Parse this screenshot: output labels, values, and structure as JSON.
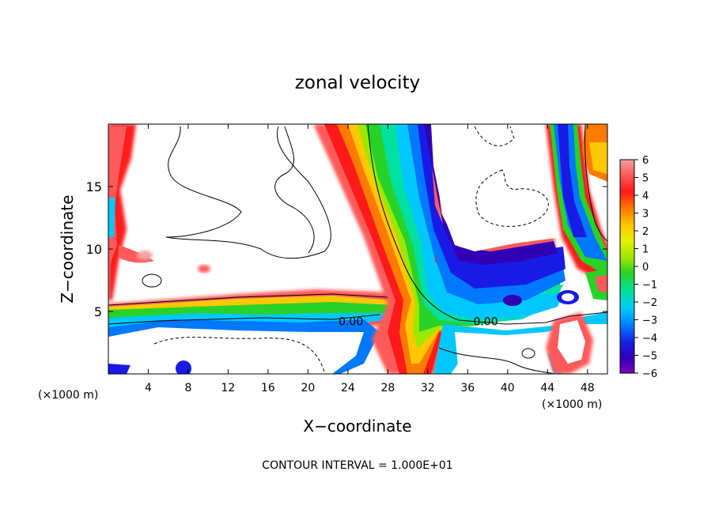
{
  "chart_data": {
    "type": "heatmap",
    "title": "zonal velocity",
    "xlabel": "X−coordinate",
    "ylabel": "Z−coordinate",
    "x_unit_left": "(×1000 m)",
    "x_unit_right": "(×1000 m)",
    "xlim": [
      0,
      50
    ],
    "ylim": [
      0,
      20
    ],
    "xticks": [
      4,
      8,
      12,
      16,
      20,
      24,
      28,
      32,
      36,
      40,
      44,
      48
    ],
    "yticks": [
      5,
      10,
      15
    ],
    "footer": "CONTOUR INTERVAL = 1.000E+01",
    "contour_labels": [
      {
        "text": "0.00",
        "x": 24.3,
        "z": 4.2
      },
      {
        "text": "0.00",
        "x": 37.8,
        "z": 4.2
      }
    ],
    "colorbar": {
      "min": -6,
      "max": 6,
      "ticks": [
        "6",
        "5",
        "4",
        "3",
        "2",
        "1",
        "0",
        "−1",
        "−2",
        "−3",
        "−4",
        "−5",
        "−6"
      ],
      "colors": [
        "#f2a0a0",
        "#ff5a5a",
        "#ff1a1a",
        "#ff7a00",
        "#ffc800",
        "#e6f000",
        "#9ce800",
        "#28d228",
        "#00e0a0",
        "#00c8ff",
        "#0078ff",
        "#1a1ae6",
        "#3200b4",
        "#8000c0"
      ]
    }
  }
}
